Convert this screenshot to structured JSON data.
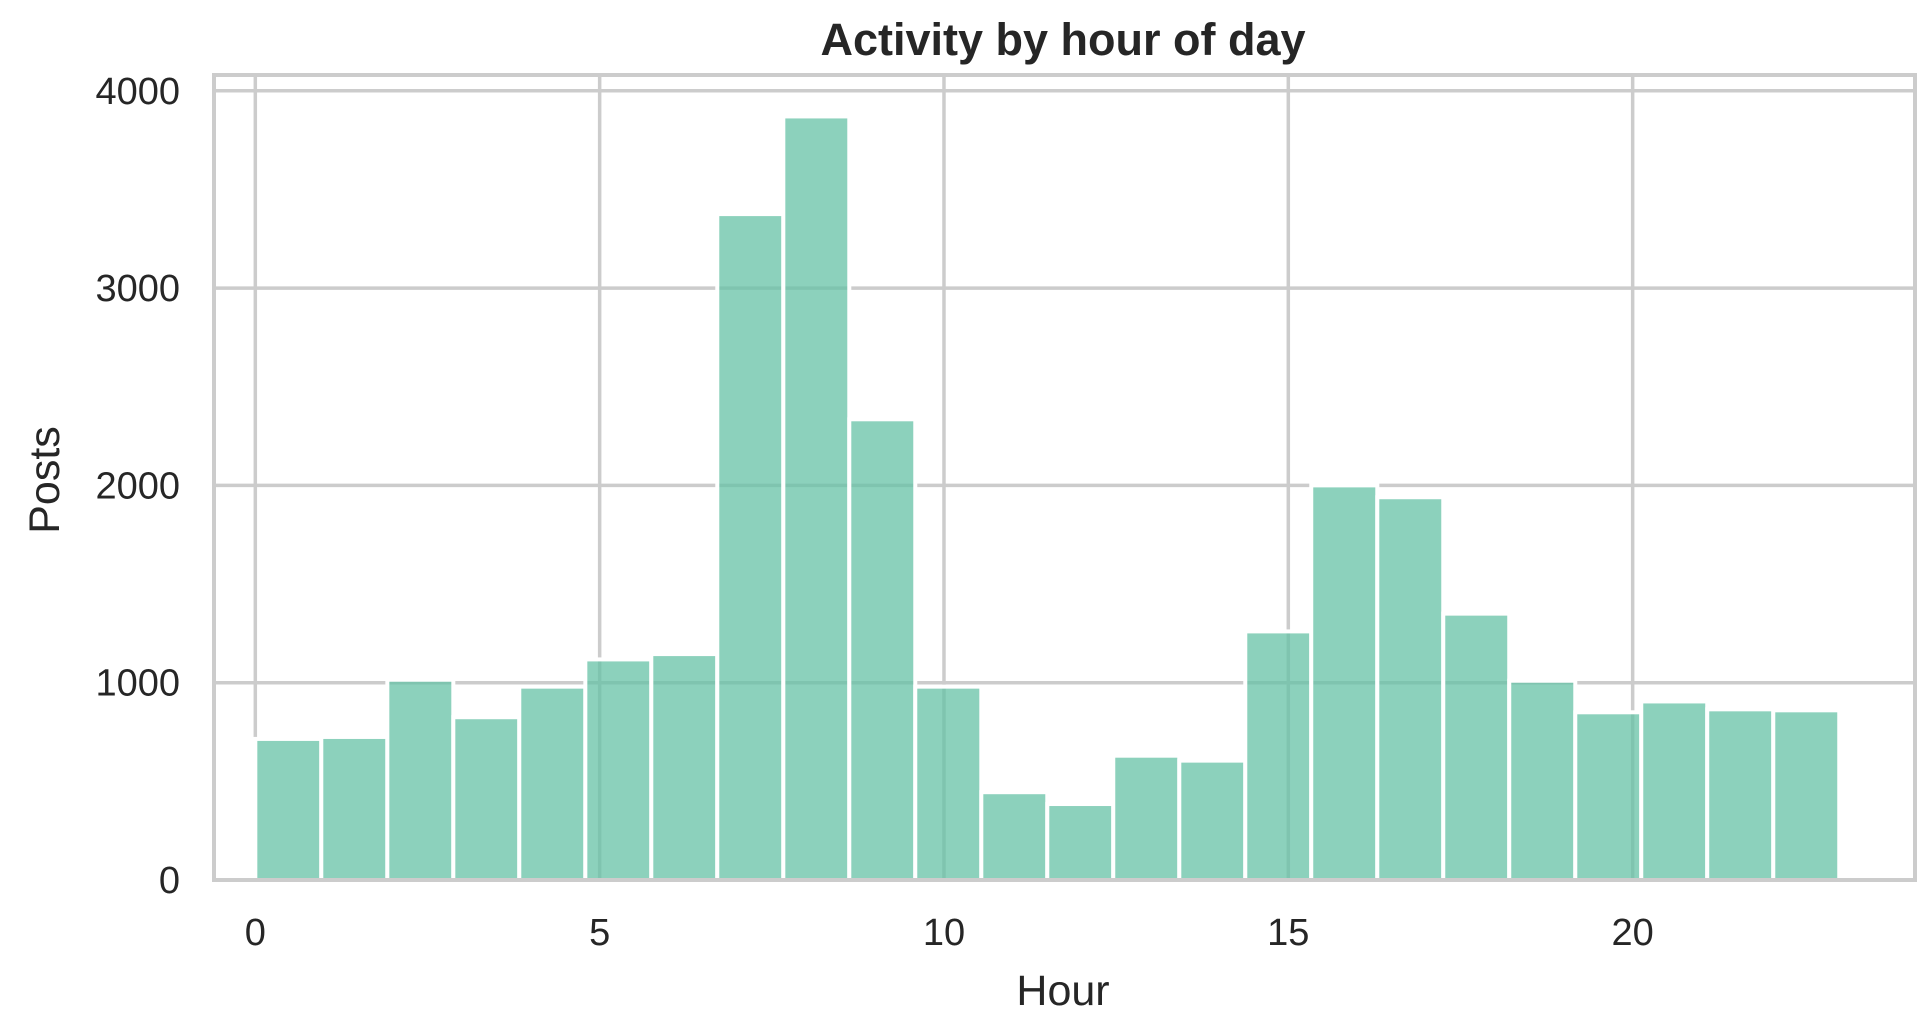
{
  "chart_data": {
    "type": "bar",
    "title": "Activity by hour of day",
    "xlabel": "Hour",
    "ylabel": "Posts",
    "x_ticks": [
      0,
      5,
      10,
      15,
      20
    ],
    "y_ticks": [
      0,
      1000,
      2000,
      3000,
      4000
    ],
    "xlim": [
      -0.6,
      24.1
    ],
    "ylim": [
      0,
      4080
    ],
    "grid": true,
    "legend": "none",
    "bin_edges": [
      0,
      0.958,
      1.917,
      2.875,
      3.833,
      4.792,
      5.75,
      6.708,
      7.667,
      8.625,
      9.583,
      10.542,
      11.5,
      12.458,
      13.417,
      14.375,
      15.333,
      16.292,
      17.25,
      18.208,
      19.167,
      20.125,
      21.083,
      22.042,
      23
    ],
    "values": [
      715,
      725,
      1015,
      825,
      980,
      1118,
      1145,
      3375,
      3870,
      2335,
      980,
      445,
      385,
      630,
      605,
      1260,
      2000,
      1940,
      1350,
      1010,
      850,
      905,
      865,
      860
    ],
    "colors": {
      "bar": "#66c2a5",
      "bar_opacity": 0.75,
      "grid": "#cccccc",
      "spine": "#cccccc",
      "text": "#262626"
    }
  }
}
